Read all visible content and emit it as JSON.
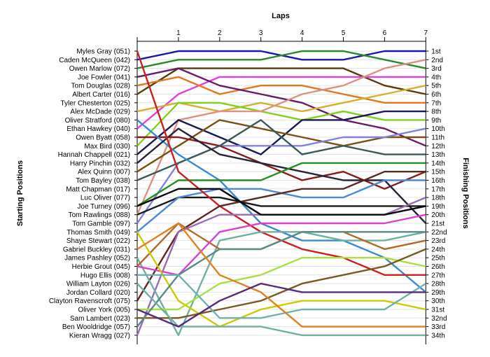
{
  "chart_data": {
    "type": "line",
    "subtype": "bump",
    "title": "",
    "xlabel": "Laps",
    "ylabel": "Starting Positions",
    "y2label": "Finishing Positions",
    "x": [
      0,
      1,
      2,
      3,
      4,
      5,
      6,
      7
    ],
    "x_tick_labels": [
      "1",
      "2",
      "3",
      "4",
      "5",
      "6",
      "7"
    ],
    "y_range": [
      1,
      34
    ],
    "y_inverted": true,
    "grid": "horizontal",
    "left_labels": [
      "Myles Gray (051)",
      "Caden McQueen (042)",
      "Owen Marlow (072)",
      "Joe Fowler (041)",
      "Tom Douglas (028)",
      "Albert Carter (016)",
      "Tyler Chesterton (025)",
      "Alex McDade (029)",
      "Oliver Stratford (080)",
      "Ethan Hawkey (040)",
      "Owen Byatt (058)",
      "Max Bird (030)",
      "Hannah Chappell (021)",
      "Harry Pinchin (032)",
      "Alex Quinn (007)",
      "Tom Bayley (038)",
      "Matt Chapman (017)",
      "Luc Oliver (077)",
      "Joe Turney (096)",
      "Tom Rawlings (088)",
      "Tom Gamble (097)",
      "Thomas Smith (049)",
      "Shaye Stewart (022)",
      "Gabriel Buckley (031)",
      "James Pashley (052)",
      "Herbie Grout (045)",
      "Hugo Ellis (008)",
      "William Layton (026)",
      "Jordan Collard (020)",
      "Clayton Ravenscroft (075)",
      "Oliver York (005)",
      "Sam Lambert (023)",
      "Ben Wooldridge (057)",
      "Kieran Wragg (027)"
    ],
    "right_labels": [
      "1st",
      "2nd",
      "3rd",
      "4th",
      "5th",
      "6th",
      "7th",
      "8th",
      "9th",
      "10th",
      "11th",
      "12th",
      "13th",
      "14th",
      "15th",
      "16th",
      "17th",
      "18th",
      "19th",
      "20th",
      "21st",
      "22nd",
      "23rd",
      "24th",
      "25th",
      "26th",
      "27th",
      "28th",
      "29th",
      "30th",
      "31st",
      "32nd",
      "33rd",
      "34th"
    ],
    "series": [
      {
        "color": "#1a1aaa",
        "values": [
          2,
          1,
          1,
          1,
          2,
          2,
          1,
          1
        ]
      },
      {
        "color": "#2a8a2a",
        "values": [
          3,
          2,
          2,
          2,
          1,
          1,
          2,
          3
        ]
      },
      {
        "color": "#5a3a0a",
        "values": [
          6,
          3,
          3,
          3,
          3,
          3,
          5,
          6
        ]
      },
      {
        "color": "#e040e0",
        "values": [
          10,
          6,
          4,
          4,
          4,
          4,
          4,
          4
        ]
      },
      {
        "color": "#e07820",
        "values": [
          5,
          4,
          6,
          5,
          5,
          6,
          7,
          7
        ]
      },
      {
        "color": "#6a1a6a",
        "values": [
          4,
          3,
          5,
          6,
          7,
          9,
          10,
          12
        ]
      },
      {
        "color": "#d4b030",
        "values": [
          8,
          7,
          8,
          7,
          8,
          7,
          6,
          5
        ]
      },
      {
        "color": "#80d020",
        "values": [
          12,
          7,
          7,
          8,
          9,
          8,
          9,
          9
        ]
      },
      {
        "color": "#e09080",
        "values": [
          20,
          9,
          8,
          8,
          6,
          5,
          3,
          2
        ]
      },
      {
        "color": "#1a1a50",
        "values": [
          13,
          9,
          11,
          13,
          9,
          9,
          8,
          8
        ]
      },
      {
        "color": "#7a5010",
        "values": [
          15,
          12,
          9,
          10,
          11,
          12,
          11,
          11
        ]
      },
      {
        "color": "#8080e0",
        "values": [
          21,
          14,
          12,
          12,
          12,
          11,
          11,
          10
        ]
      },
      {
        "color": "#8a1a1a",
        "values": [
          11,
          11,
          12,
          14,
          16,
          15,
          17,
          15
        ]
      },
      {
        "color": "#3a5a5a",
        "values": [
          16,
          14,
          12,
          9,
          13,
          12,
          13,
          13
        ]
      },
      {
        "color": "#3a8ad0",
        "values": [
          9,
          13,
          16,
          21,
          23,
          23,
          25,
          29
        ]
      },
      {
        "color": "#26263a",
        "values": [
          14,
          10,
          13,
          14,
          15,
          16,
          16,
          21
        ]
      },
      {
        "color": "#239023",
        "values": [
          19,
          16,
          16,
          16,
          14,
          14,
          14,
          14
        ]
      },
      {
        "color": "#1a1a1a",
        "values": [
          20,
          18,
          18,
          19,
          19,
          19,
          19,
          19
        ]
      },
      {
        "color": "#4a8ad8",
        "values": [
          22,
          18,
          17,
          17,
          18,
          18,
          16,
          16
        ]
      },
      {
        "color": "#cc2020",
        "values": [
          1,
          15,
          19,
          22,
          24,
          25,
          27,
          27
        ]
      },
      {
        "color": "#5a2a20",
        "values": [
          30,
          22,
          19,
          18,
          17,
          17,
          15,
          15
        ]
      },
      {
        "color": "#9a6ab8",
        "values": [
          34,
          22,
          20,
          20,
          20,
          20,
          20,
          18
        ]
      },
      {
        "color": "#70b0a0",
        "values": [
          25,
          34,
          23,
          22,
          22,
          23,
          23,
          22
        ]
      },
      {
        "color": "#b06a2a",
        "values": [
          26,
          21,
          24,
          24,
          22,
          22,
          24,
          23
        ]
      },
      {
        "color": "#d840d0",
        "values": [
          26,
          27,
          22,
          21,
          21,
          21,
          21,
          20
        ]
      },
      {
        "color": "#a8e040",
        "values": [
          31,
          31,
          28,
          27,
          25,
          25,
          25,
          26
        ]
      },
      {
        "color": "#cccc00",
        "values": [
          22,
          30,
          33,
          31,
          30,
          30,
          30,
          31
        ]
      },
      {
        "color": "#7a5a20",
        "values": [
          32,
          32,
          31,
          30,
          28,
          27,
          26,
          24
        ]
      },
      {
        "color": "#5a8a8a",
        "values": [
          33,
          27,
          24,
          24,
          22,
          22,
          22,
          22
        ]
      },
      {
        "color": "#70b0b0",
        "values": [
          27,
          27,
          32,
          32,
          31,
          31,
          31,
          28
        ]
      },
      {
        "color": "#e08020",
        "values": [
          24,
          21,
          27,
          29,
          33,
          33,
          33,
          33
        ]
      },
      {
        "color": "#0a0a0a",
        "values": [
          19,
          17,
          17,
          20,
          20,
          20,
          20,
          19
        ]
      },
      {
        "color": "#70b0a0",
        "values": [
          28,
          33,
          33,
          33,
          34,
          34,
          34,
          34
        ]
      },
      {
        "color": "#5a2a7a",
        "values": [
          31,
          33,
          30,
          28,
          29,
          29,
          29,
          29
        ]
      }
    ]
  }
}
